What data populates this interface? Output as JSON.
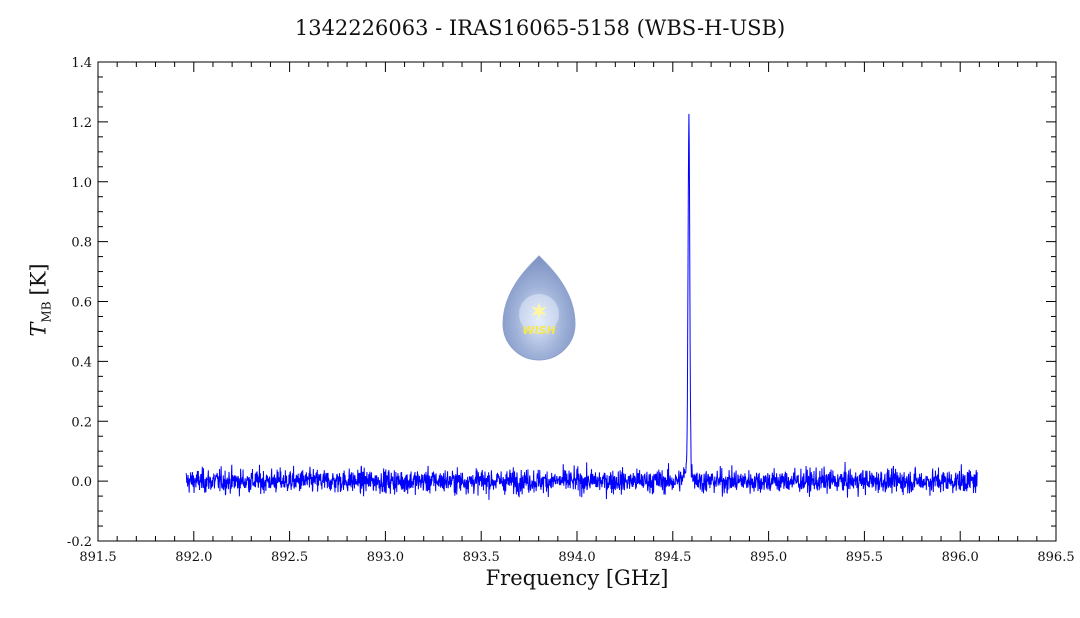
{
  "chart_data": {
    "type": "line",
    "title": "1342226063 - IRAS16065-5158 (WBS-H-USB)",
    "xlabel": "Frequency [GHz]",
    "ylabel": {
      "symbol": "T",
      "subscript": "MB",
      "unit": "[K]"
    },
    "xlim": [
      891.5,
      896.5
    ],
    "ylim": [
      -0.2,
      1.4
    ],
    "xticks": [
      "891.5",
      "892.0",
      "892.5",
      "893.0",
      "893.5",
      "894.0",
      "894.5",
      "895.0",
      "895.5",
      "896.0",
      "896.5"
    ],
    "yticks": [
      "-0.2",
      "0.0",
      "0.2",
      "0.4",
      "0.6",
      "0.8",
      "1.0",
      "1.2",
      "1.4"
    ],
    "grid": false,
    "series": [
      {
        "color": "#0000ff",
        "data_range": [
          891.96,
          896.09
        ],
        "noise_rms": 0.022,
        "peaks": [
          {
            "x": 894.584,
            "y": 1.18
          },
          {
            "x": 894.574,
            "y": 0.05
          },
          {
            "x": 894.6,
            "y": 0.04
          }
        ]
      }
    ]
  },
  "logo": {
    "text": "WISH"
  },
  "colors": {
    "line": "#0000ff",
    "axes": "#000000",
    "logo_drop": "#9fb2d8",
    "logo_text": "#f5e84a"
  }
}
